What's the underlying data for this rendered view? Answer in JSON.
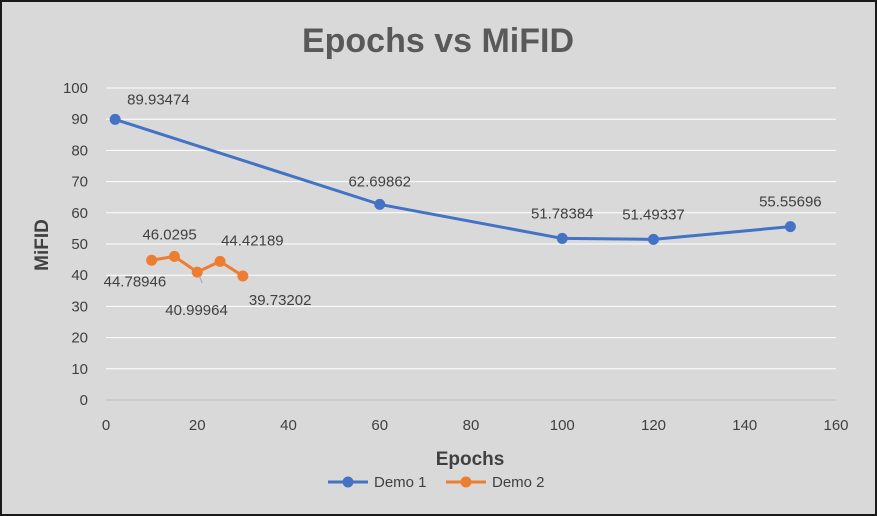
{
  "chart_data": {
    "type": "line",
    "title": "Epochs vs MiFID",
    "xlabel": "Epochs",
    "ylabel": "MiFID",
    "xlim": [
      0,
      160
    ],
    "ylim": [
      0,
      100
    ],
    "x_ticks": [
      0,
      20,
      40,
      60,
      80,
      100,
      120,
      140,
      160
    ],
    "y_ticks": [
      0,
      10,
      20,
      30,
      40,
      50,
      60,
      70,
      80,
      90,
      100
    ],
    "grid": "horizontal",
    "legend_position": "bottom",
    "series": [
      {
        "name": "Demo 1",
        "color": "#4472c4",
        "x": [
          2,
          60,
          100,
          120,
          150
        ],
        "y": [
          89.93474,
          62.69862,
          51.78384,
          51.49337,
          55.55696
        ],
        "labels": [
          "89.93474",
          "62.69862",
          "51.78384",
          "51.49337",
          "55.55696"
        ]
      },
      {
        "name": "Demo 2",
        "color": "#ed7d31",
        "x": [
          10,
          15,
          20,
          25,
          30
        ],
        "y": [
          44.78946,
          46.0295,
          40.99964,
          44.42189,
          39.73202
        ],
        "labels": [
          "44.78946",
          "46.0295",
          "40.99964",
          "44.42189",
          "39.73202"
        ]
      }
    ]
  }
}
